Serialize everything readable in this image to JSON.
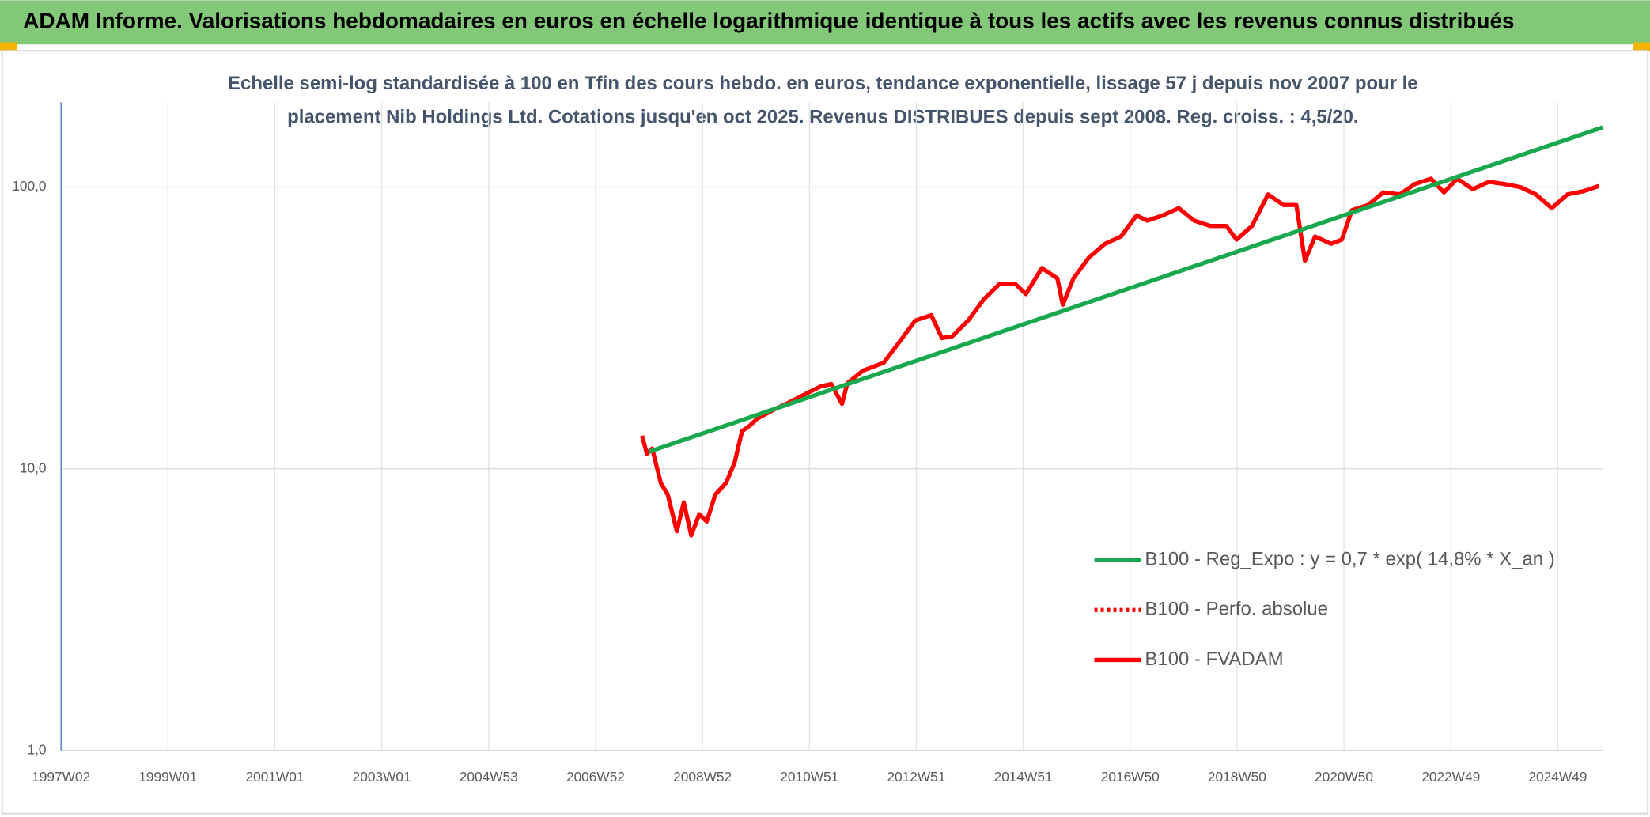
{
  "chart_data": {
    "type": "line",
    "title": "ADAM Informe. Valorisations hebdomadaires en euros en échelle logarithmique identique à tous les actifs avec les revenus connus distribués",
    "subtitle": [
      "Echelle semi-log standardisée à 100 en Tfin des cours hebdo. en euros, tendance exponentielle, lissage 57 j depuis nov 2007 pour le",
      "placement Nib Holdings Ltd. Cotations jusqu'en oct 2025. Revenus DISTRIBUES depuis sept 2008. Reg. croiss. : 4,5/20."
    ],
    "log_y": true,
    "grid": true,
    "legend": "right",
    "xlim": [
      1997,
      2025.84
    ],
    "ylim": [
      1,
      200
    ],
    "yticks": [
      {
        "value": 1,
        "label": "1,0"
      },
      {
        "value": 10,
        "label": "10,0"
      },
      {
        "value": 100,
        "label": "100,0"
      }
    ],
    "xticks": [
      {
        "value": 1997,
        "label": "1997W02"
      },
      {
        "value": 1999,
        "label": "1999W01"
      },
      {
        "value": 2001,
        "label": "2001W01"
      },
      {
        "value": 2003,
        "label": "2003W01"
      },
      {
        "value": 2005,
        "label": "2004W53"
      },
      {
        "value": 2007,
        "label": "2006W52"
      },
      {
        "value": 2009,
        "label": "2008W52"
      },
      {
        "value": 2011,
        "label": "2010W51"
      },
      {
        "value": 2013,
        "label": "2012W51"
      },
      {
        "value": 2015,
        "label": "2014W51"
      },
      {
        "value": 2017,
        "label": "2016W50"
      },
      {
        "value": 2019,
        "label": "2018W50"
      },
      {
        "value": 2021,
        "label": "2020W50"
      },
      {
        "value": 2023,
        "label": "2022W49"
      },
      {
        "value": 2025,
        "label": "2024W49"
      }
    ],
    "series": [
      {
        "name": "B100 - Reg_Expo : y = 0,7 * exp( 14,8% * X_an )",
        "color": "#1aa84e",
        "style": "solid",
        "x": [
          2008.0,
          2025.84
        ],
        "values": [
          11.5,
          163
        ]
      },
      {
        "name": "B100 - Perfo. absolue",
        "color": "#ff0000",
        "style": "dotted",
        "x": [
          2007.87,
          2007.96,
          2008.06,
          2008.22,
          2008.35,
          2008.52,
          2008.65,
          2008.79,
          2008.94,
          2009.08,
          2009.24,
          2009.44,
          2009.6,
          2009.74,
          2009.88,
          2010.03,
          2010.33,
          2010.62,
          2010.92,
          2011.21,
          2011.41,
          2011.61,
          2011.71,
          2012.0,
          2012.39,
          2012.69,
          2012.98,
          2013.28,
          2013.48,
          2013.67,
          2013.97,
          2014.26,
          2014.56,
          2014.85,
          2015.05,
          2015.35,
          2015.64,
          2015.74,
          2015.94,
          2016.23,
          2016.53,
          2016.83,
          2017.12,
          2017.32,
          2017.61,
          2017.91,
          2018.2,
          2018.5,
          2018.8,
          2018.99,
          2019.28,
          2019.58,
          2019.87,
          2020.11,
          2020.27,
          2020.46,
          2020.76,
          2020.96,
          2021.15,
          2021.45,
          2021.74,
          2022.04,
          2022.33,
          2022.63,
          2022.87,
          2023.12,
          2023.41,
          2023.71,
          2024.0,
          2024.3,
          2024.59,
          2024.89,
          2025.18,
          2025.48,
          2025.77
        ],
        "values": [
          13.1,
          11.3,
          11.8,
          8.9,
          8.1,
          6.0,
          7.6,
          5.8,
          6.9,
          6.5,
          8.1,
          8.9,
          10.5,
          13.6,
          14.2,
          15.1,
          16.2,
          17.2,
          18.4,
          19.6,
          20.0,
          17.0,
          20.1,
          22.3,
          23.8,
          28.3,
          33.6,
          35.1,
          29.1,
          29.5,
          33.6,
          39.9,
          45.4,
          45.4,
          41.7,
          51.6,
          47.4,
          38.2,
          47.4,
          56.3,
          62.9,
          66.8,
          79.3,
          76.0,
          79.3,
          84.2,
          76.0,
          72.8,
          72.8,
          65.1,
          72.8,
          94.2,
          86.4,
          86.4,
          54.8,
          66.8,
          62.9,
          65.1,
          82.8,
          86.4,
          95.8,
          94.2,
          102.6,
          107.1,
          95.8,
          107.1,
          98.3,
          104.4,
          102.6,
          100,
          94.2,
          84.2,
          94.2,
          96.7,
          100.9
        ]
      },
      {
        "name": "B100 - FVADAM",
        "color": "#ff0000",
        "style": "solid",
        "x": [
          2007.87,
          2007.96,
          2008.06,
          2008.22,
          2008.35,
          2008.52,
          2008.65,
          2008.79,
          2008.94,
          2009.08,
          2009.24,
          2009.44,
          2009.6,
          2009.74,
          2009.88,
          2010.03,
          2010.33,
          2010.62,
          2010.92,
          2011.21,
          2011.41,
          2011.61,
          2011.71,
          2012.0,
          2012.39,
          2012.69,
          2012.98,
          2013.28,
          2013.48,
          2013.67,
          2013.97,
          2014.26,
          2014.56,
          2014.85,
          2015.05,
          2015.35,
          2015.64,
          2015.74,
          2015.94,
          2016.23,
          2016.53,
          2016.83,
          2017.12,
          2017.32,
          2017.61,
          2017.91,
          2018.2,
          2018.5,
          2018.8,
          2018.99,
          2019.28,
          2019.58,
          2019.87,
          2020.11,
          2020.27,
          2020.46,
          2020.76,
          2020.96,
          2021.15,
          2021.45,
          2021.74,
          2022.04,
          2022.33,
          2022.63,
          2022.87,
          2023.12,
          2023.41,
          2023.71,
          2024.0,
          2024.3,
          2024.59,
          2024.89,
          2025.18,
          2025.48,
          2025.77
        ],
        "values": [
          13.1,
          11.3,
          11.8,
          8.9,
          8.1,
          6.0,
          7.6,
          5.8,
          6.9,
          6.5,
          8.1,
          8.9,
          10.5,
          13.6,
          14.2,
          15.1,
          16.2,
          17.2,
          18.4,
          19.6,
          20.0,
          17.0,
          20.1,
          22.3,
          23.8,
          28.3,
          33.6,
          35.1,
          29.1,
          29.5,
          33.6,
          39.9,
          45.4,
          45.4,
          41.7,
          51.6,
          47.4,
          38.2,
          47.4,
          56.3,
          62.9,
          66.8,
          79.3,
          76.0,
          79.3,
          84.2,
          76.0,
          72.8,
          72.8,
          65.1,
          72.8,
          94.2,
          86.4,
          86.4,
          54.8,
          66.8,
          62.9,
          65.1,
          82.8,
          86.4,
          95.8,
          94.2,
          102.6,
          107.1,
          95.8,
          107.1,
          98.3,
          104.4,
          102.6,
          100,
          94.2,
          84.2,
          94.2,
          96.7,
          100.9
        ]
      }
    ]
  }
}
